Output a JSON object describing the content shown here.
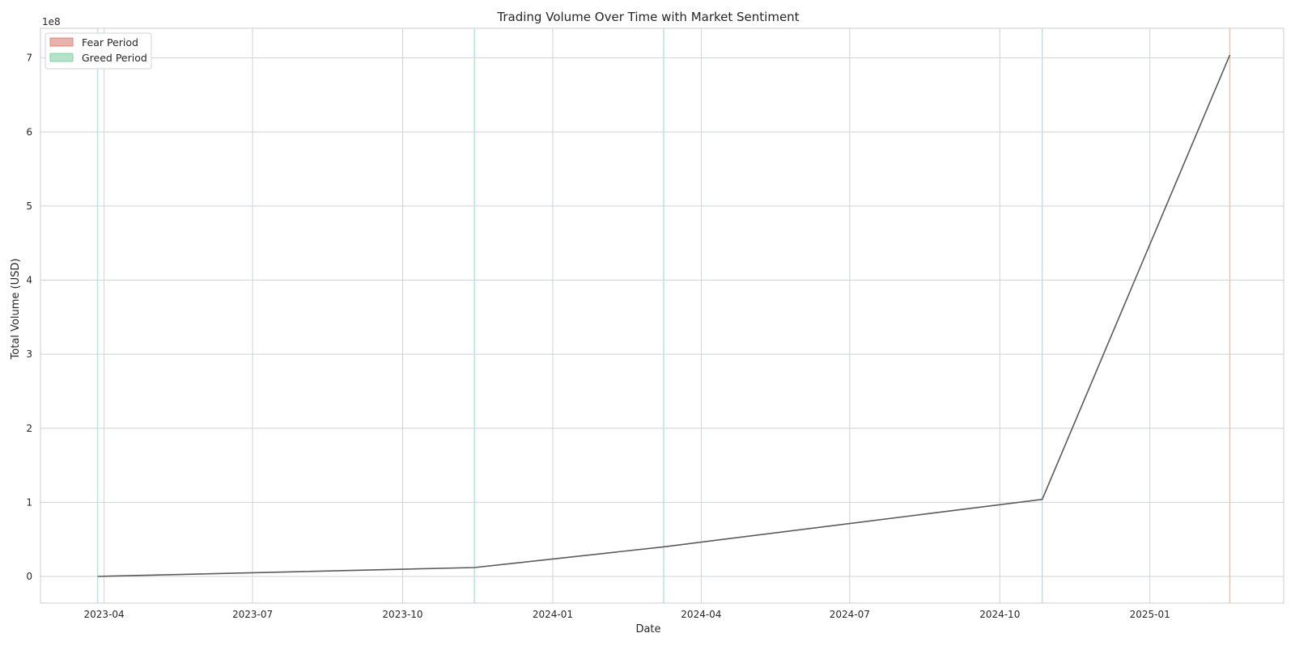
{
  "chart_data": {
    "type": "line",
    "title": "Trading Volume Over Time with Market Sentiment",
    "xlabel": "Date",
    "ylabel": "Total Volume (USD)",
    "y_offset_label": "1e8",
    "y_scale": 100000000,
    "xlim": [
      "2023-02-21",
      "2025-03-24"
    ],
    "ylim": [
      -36000000,
      740000000
    ],
    "x_ticks": [
      "2023-04-01",
      "2023-07-01",
      "2023-10-01",
      "2024-01-01",
      "2024-04-01",
      "2024-07-01",
      "2024-10-01",
      "2025-01-01"
    ],
    "x_tick_labels": [
      "2023-04",
      "2023-07",
      "2023-10",
      "2024-01",
      "2024-04",
      "2024-07",
      "2024-10",
      "2025-01"
    ],
    "y_ticks": [
      0,
      100000000,
      200000000,
      300000000,
      400000000,
      500000000,
      600000000,
      700000000
    ],
    "y_tick_labels": [
      "0",
      "1",
      "2",
      "3",
      "4",
      "5",
      "6",
      "7"
    ],
    "grid": true,
    "legend_position": "top-left",
    "series": [
      {
        "color": "#5a5a5a",
        "x": [
          "2023-03-28",
          "2023-11-14",
          "2024-03-09",
          "2024-10-27",
          "2025-02-19"
        ],
        "y": [
          0,
          12000000,
          40000000,
          104000000,
          704000000
        ]
      }
    ],
    "sentiment_markers": [
      {
        "date": "2023-03-28",
        "sentiment": "greed"
      },
      {
        "date": "2023-11-14",
        "sentiment": "greed"
      },
      {
        "date": "2024-03-09",
        "sentiment": "greed"
      },
      {
        "date": "2024-10-27",
        "sentiment": "greed"
      },
      {
        "date": "2025-02-19",
        "sentiment": "fear"
      }
    ],
    "legend": [
      {
        "label": "Fear Period",
        "color": "#e8b3ab",
        "edge": "#d9776a"
      },
      {
        "label": "Greed Period",
        "color": "#b5e2c8",
        "edge": "#6fcf97"
      }
    ],
    "colors": {
      "fear_line": "#e9c7b5",
      "greed_line": "#bfe3e0",
      "grid": "#cfd3d6",
      "axes": "#cccccc"
    }
  }
}
